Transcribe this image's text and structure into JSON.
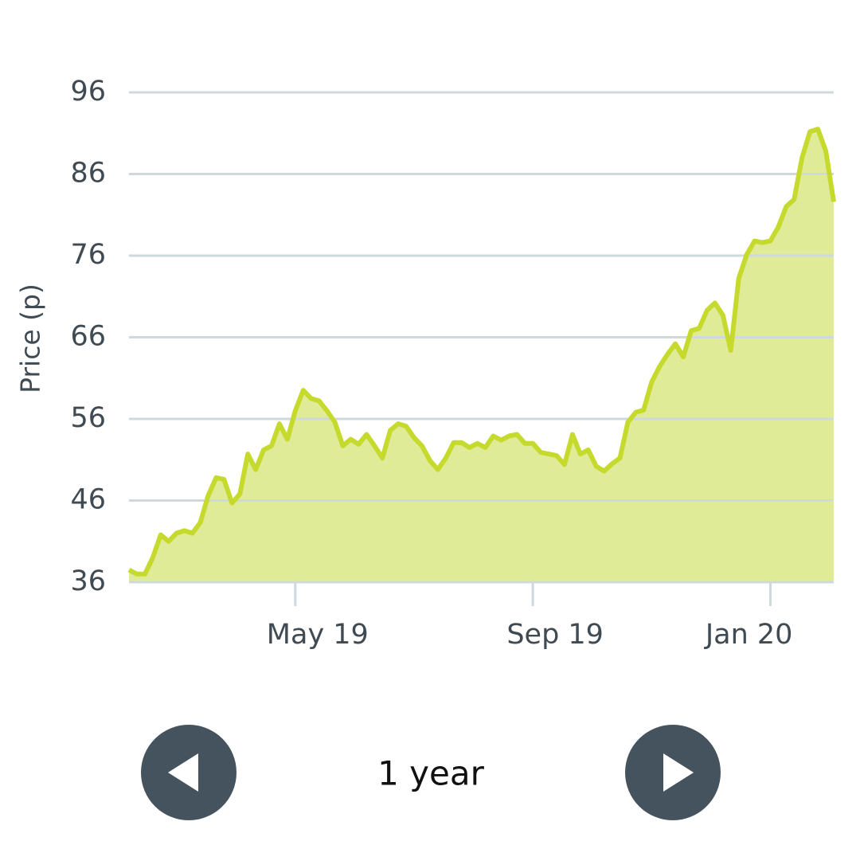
{
  "chart_data": {
    "type": "area",
    "y_label": "Price (p)",
    "categories": [
      null,
      null,
      null,
      null,
      null,
      null,
      null,
      null,
      null,
      null,
      null,
      null,
      null,
      null,
      null,
      null,
      null,
      null,
      null,
      null,
      null,
      "May 19",
      null,
      null,
      null,
      null,
      null,
      null,
      null,
      null,
      null,
      null,
      null,
      null,
      null,
      null,
      null,
      null,
      null,
      null,
      null,
      null,
      null,
      null,
      null,
      null,
      null,
      null,
      null,
      null,
      null,
      "Sep 19",
      null,
      null,
      null,
      null,
      null,
      null,
      null,
      null,
      null,
      null,
      null,
      null,
      null,
      null,
      null,
      null,
      null,
      null,
      null,
      null,
      null,
      null,
      null,
      null,
      null,
      null,
      null,
      null,
      null,
      "Jan 20",
      null,
      null,
      null,
      null,
      null,
      null,
      null,
      null
    ],
    "values": [
      37.5,
      37,
      37,
      39,
      41.8,
      41,
      42,
      42.3,
      42,
      43.3,
      46.6,
      48.8,
      48.6,
      45.7,
      46.8,
      51.7,
      49.8,
      52.2,
      52.7,
      55.4,
      53.5,
      57,
      59.5,
      58.5,
      58.2,
      57,
      55.6,
      52.7,
      53.5,
      52.9,
      54.1,
      52.7,
      51.2,
      54.6,
      55.4,
      55.1,
      53.7,
      52.7,
      50.9,
      49.8,
      51.2,
      53.1,
      53.1,
      52.5,
      53,
      52.5,
      53.9,
      53.4,
      53.9,
      54.1,
      53,
      53,
      51.9,
      51.7,
      51.5,
      50.4,
      54.1,
      51.7,
      52.2,
      50.2,
      49.6,
      50.5,
      51.2,
      55.6,
      56.8,
      57.1,
      60.5,
      62.4,
      63.9,
      65.2,
      63.6,
      66.8,
      67.1,
      69.3,
      70.2,
      68.7,
      64.4,
      73.2,
      76.1,
      77.8,
      77.6,
      77.8,
      79.5,
      82,
      82.9,
      88,
      91.2,
      91.5,
      88.8,
      82.6
    ],
    "line_color": "#c6da2e",
    "fill_color": "#dfeb97",
    "ylim": [
      36,
      96
    ],
    "yticks": [
      36,
      46,
      56,
      66,
      76,
      86,
      96
    ],
    "grid": true
  },
  "period_label": "1 year"
}
